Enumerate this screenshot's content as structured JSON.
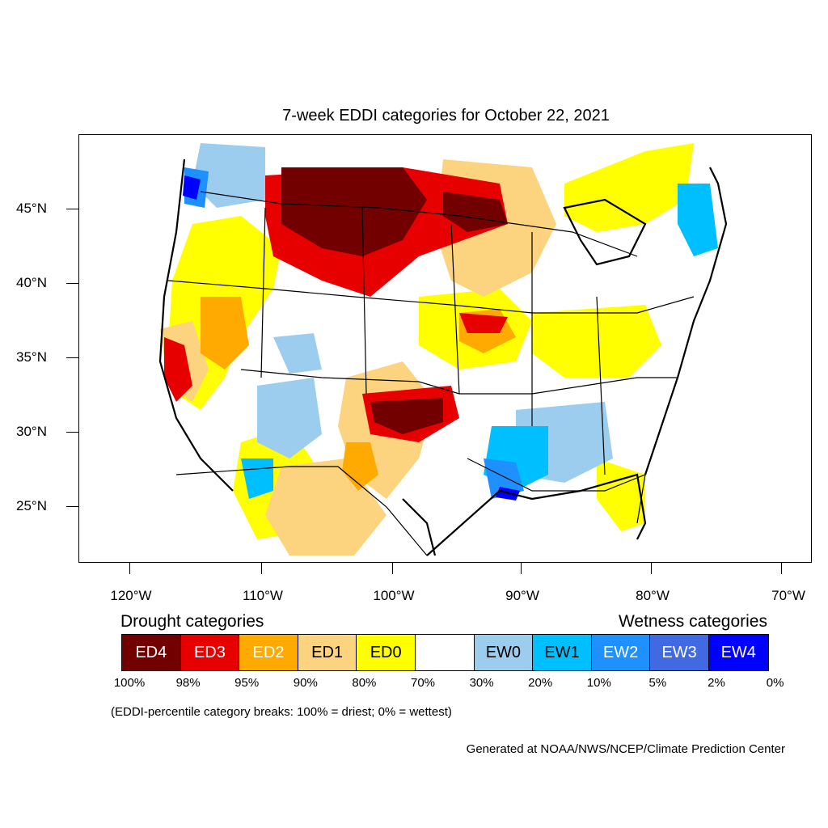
{
  "title": "7-week EDDI categories for October 22, 2021",
  "lat_labels": [
    "45°N",
    "40°N",
    "35°N",
    "30°N",
    "25°N"
  ],
  "lon_labels": [
    "120°W",
    "110°W",
    "100°W",
    "90°W",
    "80°W",
    "70°W"
  ],
  "legend": {
    "drought_title": "Drought categories",
    "wetness_title": "Wetness categories",
    "categories": [
      {
        "label": "ED4",
        "color": "#730000",
        "text_color": "#ffffff"
      },
      {
        "label": "ED3",
        "color": "#e60000",
        "text_color": "#ffffff"
      },
      {
        "label": "ED2",
        "color": "#ffaa00",
        "text_color": "#ffffff"
      },
      {
        "label": "ED1",
        "color": "#fcd37f",
        "text_color": "#000000"
      },
      {
        "label": "ED0",
        "color": "#ffff00",
        "text_color": "#000000"
      },
      {
        "label": "",
        "color": "#ffffff",
        "text_color": "#000000"
      },
      {
        "label": "EW0",
        "color": "#9ccdee",
        "text_color": "#000000"
      },
      {
        "label": "EW1",
        "color": "#00bfff",
        "text_color": "#000000"
      },
      {
        "label": "EW2",
        "color": "#1e90ff",
        "text_color": "#ffffff"
      },
      {
        "label": "EW3",
        "color": "#4169e1",
        "text_color": "#ffffff"
      },
      {
        "label": "EW4",
        "color": "#0000ff",
        "text_color": "#ffffff"
      }
    ],
    "breaks": [
      "100%",
      "98%",
      "95%",
      "90%",
      "80%",
      "70%",
      "30%",
      "20%",
      "10%",
      "5%",
      "2%",
      "0%"
    ]
  },
  "note": "(EDDI-percentile category breaks: 100% = driest; 0% = wettest)",
  "credit": "Generated at NOAA/NWS/NCEP/Climate Prediction Center"
}
